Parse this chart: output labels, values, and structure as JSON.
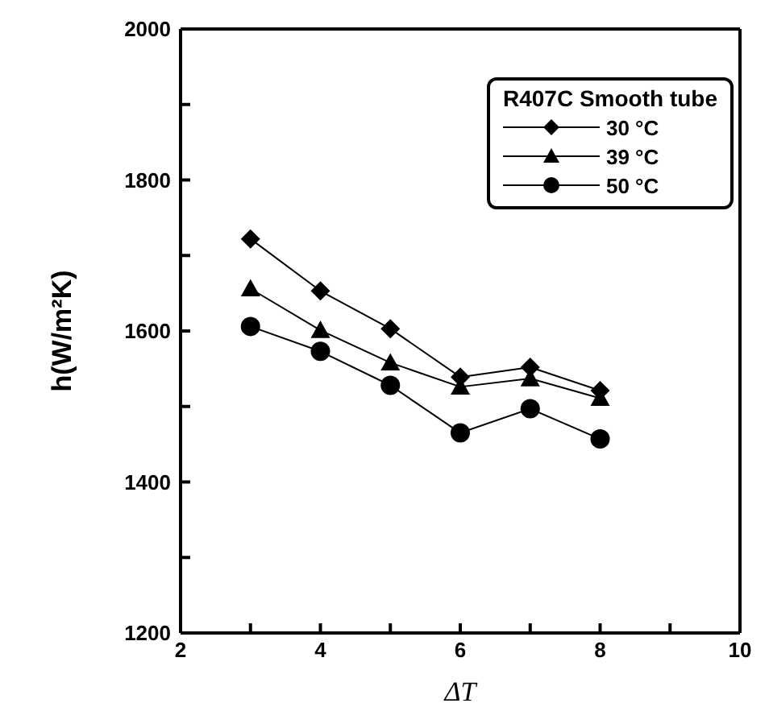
{
  "chart_data": {
    "type": "line",
    "xlabel": "ΔT",
    "ylabel": "h(W/m²K)",
    "legend_title": "R407C Smooth tube",
    "legend": "top right",
    "x": [
      3,
      4,
      5,
      6,
      7,
      8
    ],
    "xlim": [
      2,
      10
    ],
    "xticks": [
      2,
      {
        "value": 3,
        "label": null
      },
      4,
      {
        "value": 5,
        "label": null
      },
      6,
      {
        "value": 7,
        "label": null
      },
      8,
      {
        "value": 9,
        "label": null
      },
      10
    ],
    "ylim": [
      1200,
      2000
    ],
    "yticks": [
      1200,
      {
        "value": 1300,
        "label": null
      },
      1400,
      {
        "value": 1500,
        "label": null
      },
      1600,
      {
        "value": 1700,
        "label": null
      },
      1800,
      {
        "value": 1900,
        "label": null
      },
      2000
    ],
    "line_style": "solid",
    "series": [
      {
        "name": "30 °C",
        "color": "#000000",
        "marker": "diamond",
        "values": [
          1722,
          1653,
          1603,
          1539,
          1552,
          1521
        ]
      },
      {
        "name": "39 °C",
        "color": "#000000",
        "marker": "triangle",
        "values": [
          1656,
          1601,
          1558,
          1526,
          1537,
          1511
        ]
      },
      {
        "name": "50 °C",
        "color": "#000000",
        "marker": "circle",
        "values": [
          1606,
          1573,
          1528,
          1465,
          1497,
          1457
        ]
      }
    ]
  }
}
